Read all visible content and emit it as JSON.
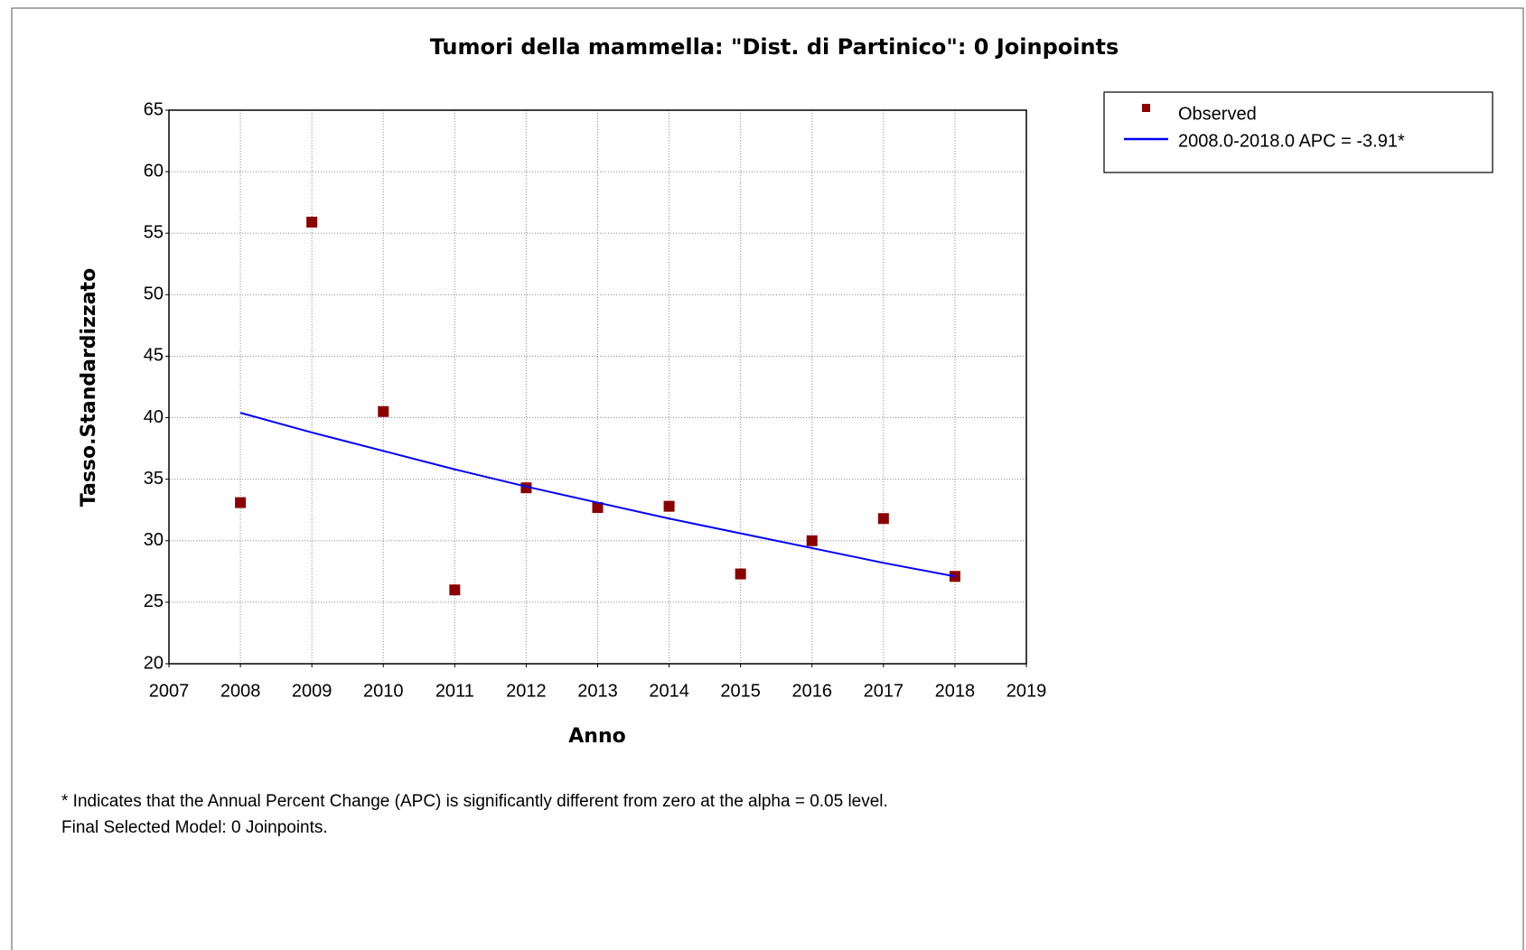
{
  "chart_data": {
    "type": "scatter",
    "title": "Tumori della mammella: \"Dist. di Partinico\": 0 Joinpoints",
    "x_label": "Anno",
    "y_label": "Tasso.Standardizzato",
    "x": [
      2008,
      2009,
      2010,
      2011,
      2012,
      2013,
      2014,
      2015,
      2016,
      2017,
      2018
    ],
    "series": [
      {
        "name": "Observed",
        "color": "#8b0000",
        "mode": "markers",
        "values": [
          33.1,
          55.9,
          40.5,
          26.0,
          34.3,
          32.7,
          32.8,
          27.3,
          30.0,
          31.8,
          27.1
        ]
      },
      {
        "name": "2008.0-2018.0 APC  = -3.91*",
        "color": "#0000ff",
        "mode": "line",
        "values": [
          40.4,
          38.8,
          37.3,
          35.8,
          34.4,
          33.1,
          31.8,
          30.6,
          29.4,
          28.2,
          27.1
        ]
      }
    ],
    "xlim": [
      2007,
      2019
    ],
    "xticks": [
      2007,
      2008,
      2009,
      2010,
      2011,
      2012,
      2013,
      2014,
      2015,
      2016,
      2017,
      2018,
      2019
    ],
    "ylim": [
      20,
      65
    ],
    "yticks": [
      20,
      25,
      30,
      35,
      40,
      45,
      50,
      55,
      60,
      65
    ],
    "grid": true,
    "legend": "top-right",
    "notes": [
      "* Indicates that the Annual Percent Change (APC) is significantly different from zero at the alpha = 0.05 level.",
      "Final Selected Model: 0 Joinpoints."
    ]
  }
}
